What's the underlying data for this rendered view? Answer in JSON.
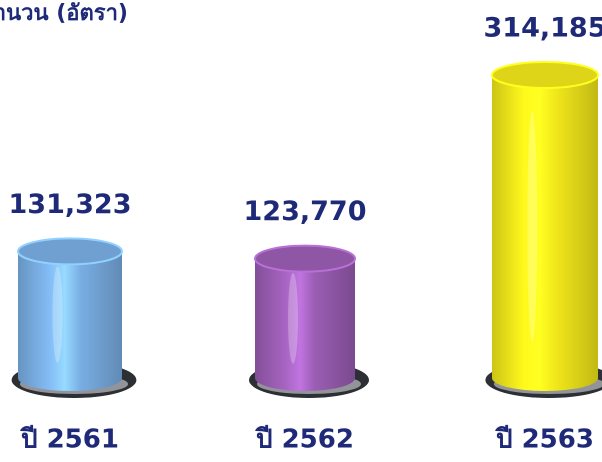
{
  "chart_data": {
    "type": "cylinder",
    "title": "จำนวน (อัตรา)",
    "categories": [
      "ปี 2561",
      "ปี 2562",
      "ปี 2563"
    ],
    "values": [
      131323,
      123770,
      314185
    ],
    "value_labels": [
      "131,323",
      "123,770",
      "314,185"
    ],
    "colors": [
      "#79aee3",
      "#9a5db3",
      "#f1e71a"
    ]
  }
}
